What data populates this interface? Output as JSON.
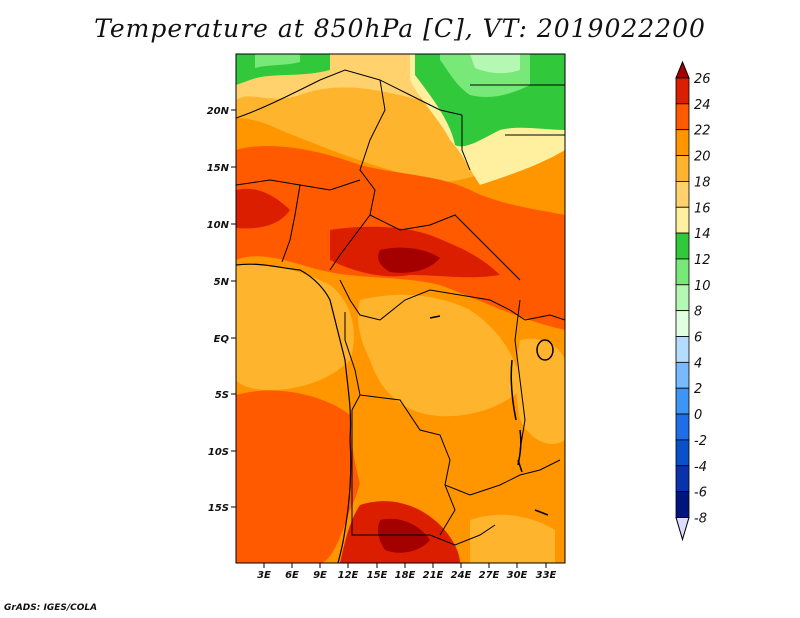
{
  "title": "Temperature at 850hPa [C], VT: 2019022200",
  "credit": "GrADS: IGES/COLA",
  "map": {
    "region": "Central Africa",
    "lat_labels": [
      "20N",
      "15N",
      "10N",
      "5N",
      "EQ",
      "5S",
      "10S",
      "15S"
    ],
    "lon_labels": [
      "3E",
      "6E",
      "9E",
      "12E",
      "15E",
      "18E",
      "21E",
      "24E",
      "27E",
      "30E",
      "33E"
    ],
    "field": "temperature_850hPa",
    "units": "C"
  },
  "colorbar": {
    "levels": [
      "26",
      "24",
      "22",
      "20",
      "18",
      "16",
      "14",
      "12",
      "10",
      "8",
      "6",
      "4",
      "2",
      "0",
      "-2",
      "-4",
      "-6",
      "-8"
    ],
    "colors": [
      "#a50000",
      "#dc1e00",
      "#ff5a00",
      "#ff9600",
      "#ffb42d",
      "#ffd26e",
      "#fff0a0",
      "#32c83c",
      "#78e878",
      "#b4f8b4",
      "#e1ffe1",
      "#b4dcff",
      "#78b9ff",
      "#3c96f5",
      "#1e6ee6",
      "#0a50c8",
      "#0a32aa",
      "#00147d",
      "#dcdcff"
    ]
  }
}
